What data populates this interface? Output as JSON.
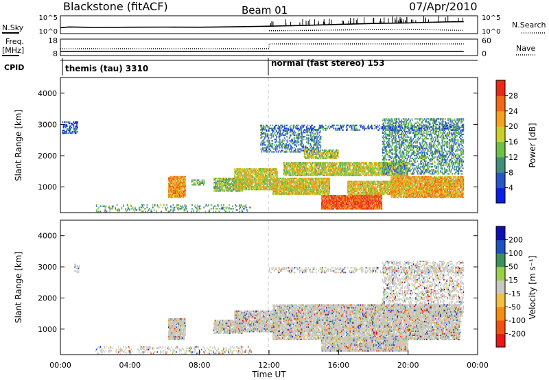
{
  "header": {
    "title": "Blackstone (fitACF)",
    "beam": "Beam 01",
    "date": "07/Apr/2010"
  },
  "labels": {
    "nsky": "N.Sky",
    "nsearch": "N.Search",
    "freq": "Freq.",
    "mhz": "[MHz]",
    "nave": "Nave",
    "cpid": "CPID"
  },
  "colors": {
    "power": [
      "#0a1ee6",
      "#2a55c8",
      "#3f8f7a",
      "#6fbf4a",
      "#c8d02a",
      "#f5a020",
      "#f06818",
      "#e82a18"
    ],
    "velocity": [
      "#e81818",
      "#f05010",
      "#f58c10",
      "#f0c040",
      "#c8c8c0",
      "#9ad04a",
      "#3f8f5a",
      "#2050c0",
      "#1010b0"
    ],
    "guide_line": "#c8c8c8"
  },
  "chart_data": [
    {
      "type": "line",
      "name": "noise-panel",
      "y_ticks_left": [
        "10^5",
        "10^0"
      ],
      "y_ticks_right": [
        "10^5",
        "10^0"
      ],
      "series": [
        {
          "name": "N.Sky",
          "style": "solid",
          "x": [
            0,
            0.5,
            2,
            4,
            6,
            8,
            10,
            12,
            14,
            16,
            18,
            20,
            22,
            23.2
          ],
          "y": [
            0.3,
            0.35,
            0.32,
            0.33,
            0.34,
            0.33,
            0.36,
            0.4,
            0.45,
            0.52,
            0.58,
            0.62,
            0.68,
            0.7
          ]
        },
        {
          "name": "N.Search",
          "style": "dotted",
          "x": [
            12,
            14,
            16,
            18,
            20,
            22,
            23.2
          ],
          "y": [
            0.1,
            0.12,
            0.15,
            0.18,
            0.2,
            0.15,
            0.12
          ]
        }
      ]
    },
    {
      "type": "line",
      "name": "frequency-panel",
      "y_ticks_left": [
        "18",
        "8"
      ],
      "y_ticks_right": [
        "60",
        "0"
      ],
      "series": [
        {
          "name": "Freq.",
          "style": "solid",
          "x": [
            0,
            23.2
          ],
          "y": [
            10,
            10
          ]
        },
        {
          "name": "Nave",
          "style": "dotted",
          "x": [
            0,
            12,
            12,
            23.2
          ],
          "y": [
            12,
            12,
            15.5,
            15.5
          ]
        }
      ]
    },
    {
      "type": "table",
      "name": "cpid-bar",
      "segments": [
        {
          "label": "themis (tau) 3310",
          "start": 0
        },
        {
          "label": "normal (fast stereo) 153",
          "start": 12
        }
      ]
    },
    {
      "type": "heatmap",
      "name": "power-panel",
      "xlabel": "",
      "ylabel": "Slant Range [km]",
      "xlim": [
        0,
        24
      ],
      "ylim": [
        180,
        4500
      ],
      "y_ticks": [
        1000,
        2000,
        3000,
        4000
      ],
      "colorbar": {
        "label": "Power [dB]",
        "ticks": [
          4,
          8,
          12,
          16,
          20,
          24,
          28
        ],
        "range": [
          0,
          32
        ]
      },
      "dashed_marker_x": 12,
      "blobs": [
        {
          "x": [
            0.1,
            1.0
          ],
          "y": [
            2700,
            3100
          ],
          "level": 0.15,
          "density": 0.5
        },
        {
          "x": [
            6.2,
            7.2
          ],
          "y": [
            650,
            1350
          ],
          "level": 0.75,
          "density": 0.9
        },
        {
          "x": [
            7.5,
            8.3
          ],
          "y": [
            1050,
            1250
          ],
          "level": 0.4,
          "density": 0.6
        },
        {
          "x": [
            8.8,
            10.5
          ],
          "y": [
            850,
            1300
          ],
          "level": 0.45,
          "density": 0.8
        },
        {
          "x": [
            10.0,
            12.5
          ],
          "y": [
            900,
            1600
          ],
          "level": 0.55,
          "density": 0.85
        },
        {
          "x": [
            12.2,
            15.5
          ],
          "y": [
            750,
            1300
          ],
          "level": 0.6,
          "density": 0.9
        },
        {
          "x": [
            12.8,
            20.0
          ],
          "y": [
            1350,
            1800
          ],
          "level": 0.55,
          "density": 0.8
        },
        {
          "x": [
            14.0,
            16.0
          ],
          "y": [
            1900,
            2200
          ],
          "level": 0.5,
          "density": 0.7
        },
        {
          "x": [
            15.0,
            18.5
          ],
          "y": [
            280,
            750
          ],
          "level": 0.9,
          "density": 0.95
        },
        {
          "x": [
            16.5,
            19.5
          ],
          "y": [
            750,
            1200
          ],
          "level": 0.6,
          "density": 0.85
        },
        {
          "x": [
            19.0,
            23.2
          ],
          "y": [
            650,
            1350
          ],
          "level": 0.7,
          "density": 0.9
        },
        {
          "x": [
            11.5,
            15.0
          ],
          "y": [
            2100,
            2900
          ],
          "level": 0.25,
          "density": 0.4
        },
        {
          "x": [
            18.5,
            23.2
          ],
          "y": [
            1400,
            3200
          ],
          "level": 0.3,
          "density": 0.45
        },
        {
          "x": [
            11.5,
            23.2
          ],
          "y": [
            2800,
            3000
          ],
          "level": 0.2,
          "density": 0.4
        },
        {
          "x": [
            2.0,
            11.0
          ],
          "y": [
            200,
            450
          ],
          "level": 0.35,
          "density": 0.2
        }
      ]
    },
    {
      "type": "heatmap",
      "name": "velocity-panel",
      "xlabel": "Time UT",
      "ylabel": "Slant Range [km]",
      "xlim": [
        0,
        24
      ],
      "ylim": [
        180,
        4500
      ],
      "y_ticks": [
        1000,
        2000,
        3000,
        4000
      ],
      "x_ticks": [
        "00:00",
        "04:00",
        "08:00",
        "12:00",
        "16:00",
        "20:00",
        "00:00"
      ],
      "colorbar": {
        "label": "Velocity [m s⁻¹]",
        "ticks": [
          200,
          100,
          50,
          15,
          -15,
          -50,
          -100,
          -200
        ]
      },
      "dashed_marker_x": 12,
      "blobs": [
        {
          "x": [
            0.8,
            1.1
          ],
          "y": [
            2800,
            3100
          ],
          "level": 0.5,
          "density": 0.4
        },
        {
          "x": [
            6.2,
            7.2
          ],
          "y": [
            650,
            1350
          ],
          "level": 0.5,
          "density": 0.9
        },
        {
          "x": [
            8.8,
            10.5
          ],
          "y": [
            850,
            1300
          ],
          "level": 0.5,
          "density": 0.8
        },
        {
          "x": [
            10.0,
            12.5
          ],
          "y": [
            900,
            1600
          ],
          "level": 0.5,
          "density": 0.8
        },
        {
          "x": [
            12.2,
            23.0
          ],
          "y": [
            650,
            1800
          ],
          "level": 0.5,
          "density": 0.85
        },
        {
          "x": [
            15.0,
            20.0
          ],
          "y": [
            280,
            750
          ],
          "level": 0.5,
          "density": 0.9
        },
        {
          "x": [
            2.0,
            11.0
          ],
          "y": [
            200,
            450
          ],
          "level": 0.35,
          "density": 0.25
        },
        {
          "x": [
            18.5,
            23.2
          ],
          "y": [
            1400,
            3200
          ],
          "level": 0.5,
          "density": 0.35
        },
        {
          "x": [
            12.0,
            23.2
          ],
          "y": [
            2800,
            3000
          ],
          "level": 0.5,
          "density": 0.35
        }
      ]
    }
  ]
}
